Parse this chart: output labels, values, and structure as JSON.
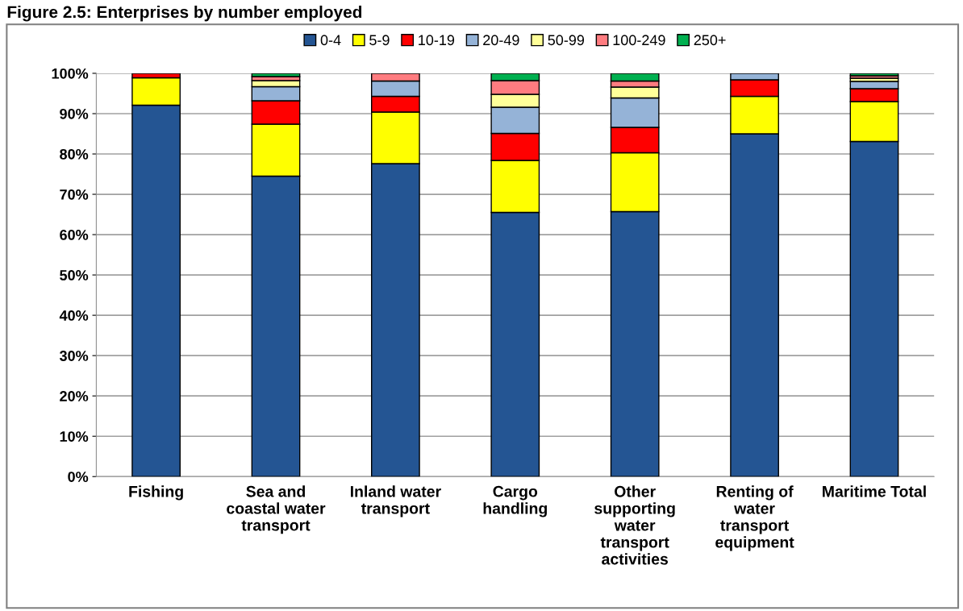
{
  "chart_data": {
    "type": "bar",
    "title": "Figure 2.5: Enterprises by number employed",
    "stacked": true,
    "grid": "y",
    "legend": "top",
    "categories": [
      "Fishing",
      "Sea and\ncoastal water\ntransport",
      "Inland water\ntransport",
      "Cargo\nhandling",
      "Other\nsupporting\nwater\ntransport\nactivities",
      "Renting of\nwater\ntransport\nequipment",
      "Maritime Total"
    ],
    "ylim": [
      0,
      100
    ],
    "yticks": [
      {
        "value": 0,
        "label": "0%"
      },
      {
        "value": 10,
        "label": "10%"
      },
      {
        "value": 20,
        "label": "20%"
      },
      {
        "value": 30,
        "label": "30%"
      },
      {
        "value": 40,
        "label": "40%"
      },
      {
        "value": 50,
        "label": "50%"
      },
      {
        "value": 60,
        "label": "60%"
      },
      {
        "value": 70,
        "label": "70%"
      },
      {
        "value": 80,
        "label": "80%"
      },
      {
        "value": 90,
        "label": "90%"
      },
      {
        "value": 100,
        "label": "100%"
      }
    ],
    "series": [
      {
        "name": "0-4",
        "color": "#245593",
        "values": [
          92.1,
          74.5,
          77.6,
          65.5,
          65.7,
          85.0,
          83.1
        ]
      },
      {
        "name": "5-9",
        "color": "#ffff00",
        "values": [
          6.8,
          12.9,
          12.8,
          12.9,
          14.6,
          9.3,
          9.9
        ]
      },
      {
        "name": "10-19",
        "color": "#ff0000",
        "values": [
          1.1,
          5.8,
          3.9,
          6.7,
          6.3,
          4.1,
          3.2
        ]
      },
      {
        "name": "20-49",
        "color": "#95b3d7",
        "values": [
          null,
          3.5,
          3.8,
          6.5,
          7.3,
          1.6,
          1.8
        ]
      },
      {
        "name": "50-99",
        "color": "#ffff99",
        "values": [
          null,
          1.5,
          null,
          3.2,
          2.7,
          null,
          0.8
        ]
      },
      {
        "name": "100-249",
        "color": "#ff7c80",
        "values": [
          null,
          1.0,
          1.9,
          3.4,
          1.5,
          null,
          0.6
        ]
      },
      {
        "name": "250+",
        "color": "#00b050",
        "values": [
          null,
          0.8,
          null,
          1.8,
          1.9,
          null,
          0.6
        ]
      }
    ]
  }
}
